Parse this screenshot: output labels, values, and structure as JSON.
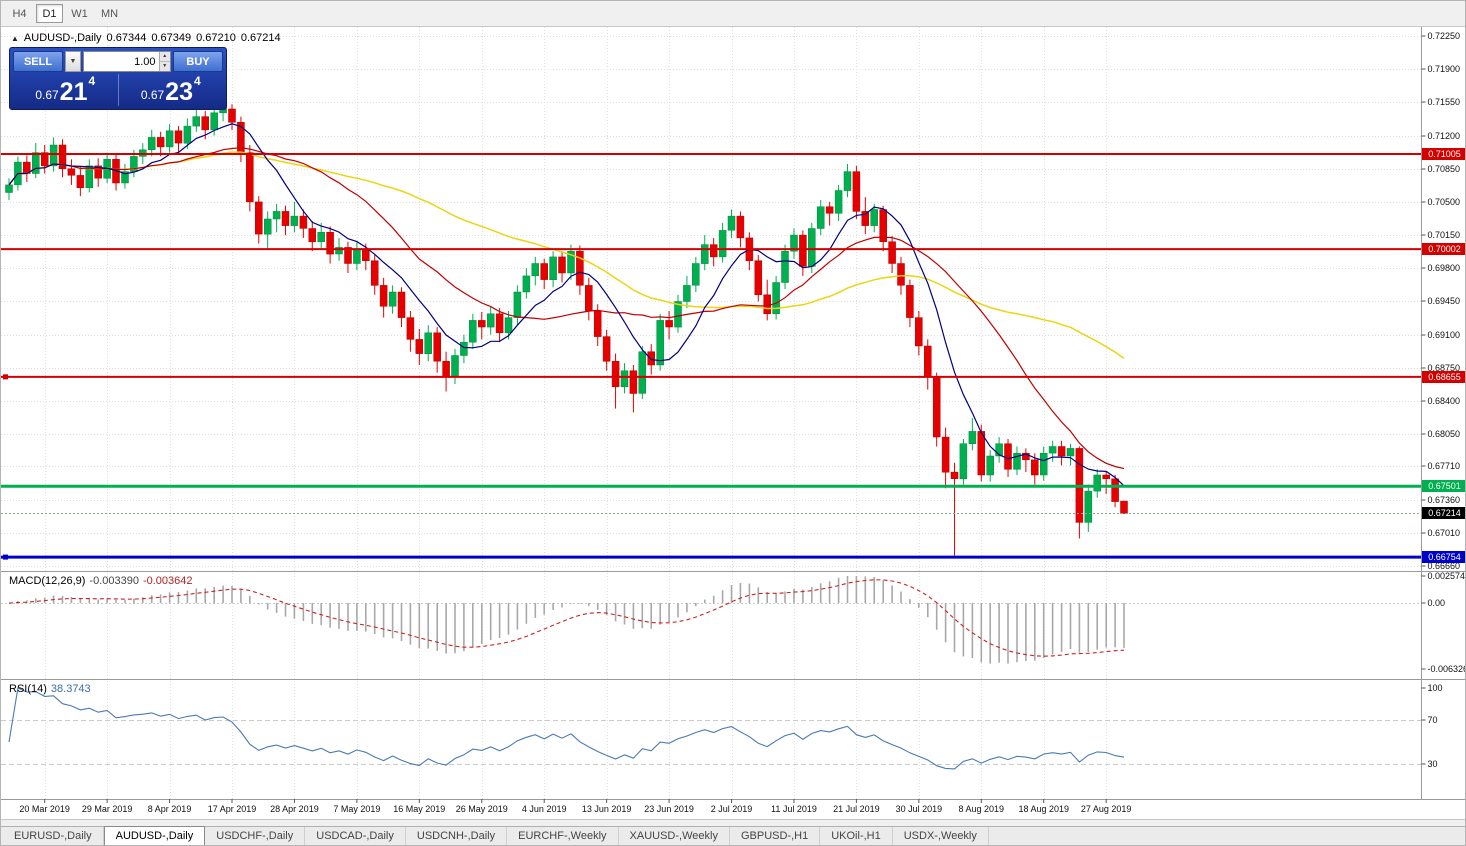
{
  "toolbar": {
    "timeframes": [
      {
        "label": "H4",
        "active": false
      },
      {
        "label": "D1",
        "active": true
      },
      {
        "label": "W1",
        "active": false
      },
      {
        "label": "MN",
        "active": false
      }
    ]
  },
  "chart_header": {
    "symbol": "AUDUSD-,Daily",
    "open": "0.67344",
    "high": "0.67349",
    "low": "0.67210",
    "close": "0.67214"
  },
  "one_click": {
    "sell_label": "SELL",
    "buy_label": "BUY",
    "volume": "1.00",
    "bid": {
      "prefix": "0.67",
      "big": "21",
      "sup": "4"
    },
    "ask": {
      "prefix": "0.67",
      "big": "23",
      "sup": "4"
    }
  },
  "icons": {
    "collapse": "▲",
    "dropdown": "▼",
    "spin_up": "▲",
    "spin_down": "▼"
  },
  "chart_data": {
    "type": "candlestick",
    "title": "AUDUSD-,Daily",
    "y_axis_ticks": [
      "0.72250",
      "0.71900",
      "0.71550",
      "0.71200",
      "0.70850",
      "0.70500",
      "0.70150",
      "0.69800",
      "0.69450",
      "0.69100",
      "0.68750",
      "0.68400",
      "0.68050",
      "0.67710",
      "0.67360",
      "0.67010",
      "0.66660"
    ],
    "y_top": 0.7225,
    "y_bottom": 0.6666,
    "x_labels": [
      "20 Mar 2019",
      "29 Mar 2019",
      "8 Apr 2019",
      "17 Apr 2019",
      "28 Apr 2019",
      "7 May 2019",
      "16 May 2019",
      "26 May 2019",
      "4 Jun 2019",
      "13 Jun 2019",
      "23 Jun 2019",
      "2 Jul 2019",
      "11 Jul 2019",
      "21 Jul 2019",
      "30 Jul 2019",
      "8 Aug 2019",
      "18 Aug 2019",
      "27 Aug 2019"
    ],
    "x_first_label_candle": 4,
    "x_label_every": 7,
    "horizontal_lines": [
      {
        "label": "0.71005",
        "price": 0.71005,
        "color": "#d40000",
        "width": 2,
        "anchor": false
      },
      {
        "label": "0.70002",
        "price": 0.70002,
        "color": "#d40000",
        "width": 2,
        "anchor": false
      },
      {
        "label": "0.68655",
        "price": 0.68655,
        "color": "#d40000",
        "width": 2,
        "anchor": true
      },
      {
        "label": "0.67501",
        "price": 0.67501,
        "color": "#00b050",
        "width": 3,
        "anchor": false
      },
      {
        "label": "0.66754",
        "price": 0.66754,
        "color": "#0000cc",
        "width": 3,
        "anchor": true
      }
    ],
    "bid_line": {
      "label": "0.67214",
      "price": 0.67214
    },
    "candles": [
      [
        0.706,
        0.7075,
        0.7052,
        0.7068
      ],
      [
        0.7068,
        0.7098,
        0.7062,
        0.7092
      ],
      [
        0.7092,
        0.7099,
        0.7071,
        0.708
      ],
      [
        0.708,
        0.7112,
        0.7075,
        0.7102
      ],
      [
        0.7102,
        0.711,
        0.708,
        0.7088
      ],
      [
        0.7088,
        0.7118,
        0.7082,
        0.711
      ],
      [
        0.711,
        0.7116,
        0.7076,
        0.7085
      ],
      [
        0.7085,
        0.7095,
        0.7068,
        0.7078
      ],
      [
        0.7078,
        0.7088,
        0.7056,
        0.7065
      ],
      [
        0.7065,
        0.7095,
        0.706,
        0.7088
      ],
      [
        0.7088,
        0.7096,
        0.7066,
        0.7075
      ],
      [
        0.7075,
        0.7102,
        0.707,
        0.7095
      ],
      [
        0.7095,
        0.71,
        0.7062,
        0.707
      ],
      [
        0.707,
        0.709,
        0.7064,
        0.7082
      ],
      [
        0.7082,
        0.7105,
        0.7076,
        0.7098
      ],
      [
        0.7098,
        0.7112,
        0.709,
        0.7105
      ],
      [
        0.7105,
        0.7126,
        0.7098,
        0.7118
      ],
      [
        0.7118,
        0.7124,
        0.7098,
        0.7108
      ],
      [
        0.7108,
        0.7132,
        0.7102,
        0.7125
      ],
      [
        0.7125,
        0.713,
        0.7102,
        0.7112
      ],
      [
        0.7112,
        0.7138,
        0.7106,
        0.713
      ],
      [
        0.713,
        0.7148,
        0.7124,
        0.714
      ],
      [
        0.714,
        0.7146,
        0.7116,
        0.7126
      ],
      [
        0.7126,
        0.715,
        0.712,
        0.7144
      ],
      [
        0.7144,
        0.7152,
        0.7135,
        0.7148
      ],
      [
        0.7148,
        0.7153,
        0.7126,
        0.7134
      ],
      [
        0.7134,
        0.714,
        0.7092,
        0.7102
      ],
      [
        0.7102,
        0.711,
        0.704,
        0.705
      ],
      [
        0.705,
        0.7056,
        0.7006,
        0.7016
      ],
      [
        0.7016,
        0.704,
        0.7,
        0.7032
      ],
      [
        0.7032,
        0.7048,
        0.7018,
        0.704
      ],
      [
        0.704,
        0.7046,
        0.7015,
        0.7025
      ],
      [
        0.7025,
        0.705,
        0.7018,
        0.7035
      ],
      [
        0.7035,
        0.7042,
        0.7012,
        0.7022
      ],
      [
        0.7022,
        0.703,
        0.6998,
        0.7008
      ],
      [
        0.7008,
        0.7028,
        0.7,
        0.7018
      ],
      [
        0.7018,
        0.7024,
        0.6985,
        0.6995
      ],
      [
        0.6995,
        0.7012,
        0.6988,
        0.7002
      ],
      [
        0.7002,
        0.7008,
        0.6975,
        0.6985
      ],
      [
        0.6985,
        0.7008,
        0.6978,
        0.7
      ],
      [
        0.7,
        0.7006,
        0.6978,
        0.6988
      ],
      [
        0.6988,
        0.6995,
        0.6952,
        0.6962
      ],
      [
        0.6962,
        0.697,
        0.6928,
        0.694
      ],
      [
        0.694,
        0.6962,
        0.6932,
        0.6955
      ],
      [
        0.6955,
        0.696,
        0.6918,
        0.6928
      ],
      [
        0.6928,
        0.6935,
        0.6892,
        0.6905
      ],
      [
        0.6905,
        0.6916,
        0.6878,
        0.689
      ],
      [
        0.689,
        0.692,
        0.6882,
        0.6912
      ],
      [
        0.6912,
        0.6918,
        0.687,
        0.6882
      ],
      [
        0.6882,
        0.6892,
        0.685,
        0.6865
      ],
      [
        0.6865,
        0.6895,
        0.6858,
        0.6888
      ],
      [
        0.6888,
        0.691,
        0.688,
        0.6902
      ],
      [
        0.6902,
        0.6932,
        0.6895,
        0.6925
      ],
      [
        0.6925,
        0.6934,
        0.6905,
        0.6918
      ],
      [
        0.6918,
        0.694,
        0.691,
        0.6932
      ],
      [
        0.6932,
        0.6938,
        0.6902,
        0.6912
      ],
      [
        0.6912,
        0.6935,
        0.6905,
        0.6928
      ],
      [
        0.6928,
        0.6962,
        0.692,
        0.6955
      ],
      [
        0.6955,
        0.698,
        0.6948,
        0.6972
      ],
      [
        0.6972,
        0.6992,
        0.6962,
        0.6985
      ],
      [
        0.6985,
        0.699,
        0.6958,
        0.6968
      ],
      [
        0.6968,
        0.6998,
        0.696,
        0.6992
      ],
      [
        0.6992,
        0.6998,
        0.6965,
        0.6975
      ],
      [
        0.6975,
        0.7005,
        0.6968,
        0.6998
      ],
      [
        0.6998,
        0.7004,
        0.6952,
        0.6962
      ],
      [
        0.6962,
        0.697,
        0.6925,
        0.6935
      ],
      [
        0.6935,
        0.6942,
        0.6898,
        0.6908
      ],
      [
        0.6908,
        0.6915,
        0.6872,
        0.6882
      ],
      [
        0.6882,
        0.689,
        0.6832,
        0.6855
      ],
      [
        0.6855,
        0.688,
        0.6848,
        0.6872
      ],
      [
        0.6872,
        0.6878,
        0.6828,
        0.6848
      ],
      [
        0.6848,
        0.6898,
        0.6842,
        0.6892
      ],
      [
        0.6892,
        0.69,
        0.6868,
        0.6878
      ],
      [
        0.6878,
        0.6932,
        0.6872,
        0.6925
      ],
      [
        0.6925,
        0.6935,
        0.6905,
        0.6918
      ],
      [
        0.6918,
        0.6952,
        0.6912,
        0.6945
      ],
      [
        0.6945,
        0.6972,
        0.6938,
        0.6962
      ],
      [
        0.6962,
        0.6992,
        0.6955,
        0.6985
      ],
      [
        0.6985,
        0.7015,
        0.6978,
        0.7005
      ],
      [
        0.7005,
        0.7012,
        0.6982,
        0.6992
      ],
      [
        0.6992,
        0.7028,
        0.6986,
        0.702
      ],
      [
        0.702,
        0.7042,
        0.7012,
        0.7035
      ],
      [
        0.7035,
        0.704,
        0.7002,
        0.7012
      ],
      [
        0.7012,
        0.7018,
        0.6978,
        0.6988
      ],
      [
        0.6988,
        0.6994,
        0.6945,
        0.6952
      ],
      [
        0.6952,
        0.6968,
        0.6925,
        0.6932
      ],
      [
        0.6932,
        0.6972,
        0.6926,
        0.6965
      ],
      [
        0.6965,
        0.7005,
        0.6958,
        0.6998
      ],
      [
        0.6998,
        0.7022,
        0.699,
        0.7015
      ],
      [
        0.7015,
        0.702,
        0.6972,
        0.6982
      ],
      [
        0.6982,
        0.7028,
        0.6975,
        0.7022
      ],
      [
        0.7022,
        0.7052,
        0.7015,
        0.7045
      ],
      [
        0.7045,
        0.705,
        0.7025,
        0.7038
      ],
      [
        0.7038,
        0.7068,
        0.703,
        0.7062
      ],
      [
        0.7062,
        0.709,
        0.7055,
        0.7082
      ],
      [
        0.7082,
        0.7088,
        0.7032,
        0.704
      ],
      [
        0.704,
        0.7055,
        0.7016,
        0.7025
      ],
      [
        0.7025,
        0.7048,
        0.7018,
        0.7042
      ],
      [
        0.7042,
        0.7046,
        0.6998,
        0.7008
      ],
      [
        0.7008,
        0.7014,
        0.6975,
        0.6985
      ],
      [
        0.6985,
        0.6992,
        0.6952,
        0.6962
      ],
      [
        0.6962,
        0.6968,
        0.6918,
        0.6928
      ],
      [
        0.6928,
        0.6935,
        0.6888,
        0.6898
      ],
      [
        0.6898,
        0.6905,
        0.6852,
        0.6865
      ],
      [
        0.6865,
        0.687,
        0.6792,
        0.6802
      ],
      [
        0.6802,
        0.6812,
        0.6748,
        0.6765
      ],
      [
        0.6765,
        0.6775,
        0.6677,
        0.6758
      ],
      [
        0.6758,
        0.68,
        0.6752,
        0.6795
      ],
      [
        0.6795,
        0.6822,
        0.6788,
        0.6808
      ],
      [
        0.6808,
        0.6815,
        0.6755,
        0.6762
      ],
      [
        0.6762,
        0.6788,
        0.6755,
        0.6782
      ],
      [
        0.6782,
        0.6802,
        0.6775,
        0.6795
      ],
      [
        0.6795,
        0.68,
        0.676,
        0.6768
      ],
      [
        0.6768,
        0.6792,
        0.6762,
        0.6785
      ],
      [
        0.6785,
        0.679,
        0.6765,
        0.6778
      ],
      [
        0.6778,
        0.6785,
        0.6752,
        0.6762
      ],
      [
        0.6762,
        0.6792,
        0.6756,
        0.6785
      ],
      [
        0.6785,
        0.6798,
        0.6776,
        0.6792
      ],
      [
        0.6792,
        0.6798,
        0.6772,
        0.6782
      ],
      [
        0.6782,
        0.6795,
        0.6772,
        0.679
      ],
      [
        0.679,
        0.6792,
        0.6695,
        0.6712
      ],
      [
        0.6712,
        0.6752,
        0.6702,
        0.6745
      ],
      [
        0.6745,
        0.6768,
        0.6738,
        0.6762
      ],
      [
        0.6762,
        0.6766,
        0.6742,
        0.6758
      ],
      [
        0.6758,
        0.6762,
        0.6728,
        0.6734
      ],
      [
        0.67344,
        0.67349,
        0.6721,
        0.67214
      ]
    ]
  },
  "indicators": {
    "macd": {
      "name": "MACD(12,26,9)",
      "value_main": "-0.003390",
      "value_signal": "-0.003642",
      "fast": 12,
      "slow": 26,
      "signal": 9,
      "y_ticks": [
        "0.002574",
        "0.00",
        "-0.006326"
      ],
      "y_range": [
        -0.006326,
        0.002574
      ]
    },
    "rsi": {
      "name": "RSI(14)",
      "value": "38.3743",
      "period": 14,
      "y_ticks": [
        "100",
        "70",
        "30"
      ],
      "levels": [
        70,
        30
      ]
    }
  },
  "tabs": {
    "active_index": 1,
    "items": [
      {
        "label": "EURUSD-,Daily"
      },
      {
        "label": "AUDUSD-,Daily"
      },
      {
        "label": "USDCHF-,Daily"
      },
      {
        "label": "USDCAD-,Daily"
      },
      {
        "label": "USDCNH-,Daily"
      },
      {
        "label": "EURCHF-,Weekly"
      },
      {
        "label": "XAUUSD-,Weekly"
      },
      {
        "label": "GBPUSD-,H1"
      },
      {
        "label": "UKOil-,H1"
      },
      {
        "label": "USDX-,Weekly"
      }
    ]
  },
  "colors": {
    "up": "#00b050",
    "up_border": "#008a3c",
    "down": "#e60000",
    "down_border": "#b00000",
    "ma_fast": "#000080",
    "ma_mid": "#c00000",
    "ma_slow": "#ecd413",
    "macd_hist": "#a8a8a8",
    "macd_signal": "#cc2222",
    "rsi_line": "#4a7ab5",
    "grid": "#dfdfdf",
    "frame": "#9a9a9a",
    "axis_text": "#111111"
  }
}
